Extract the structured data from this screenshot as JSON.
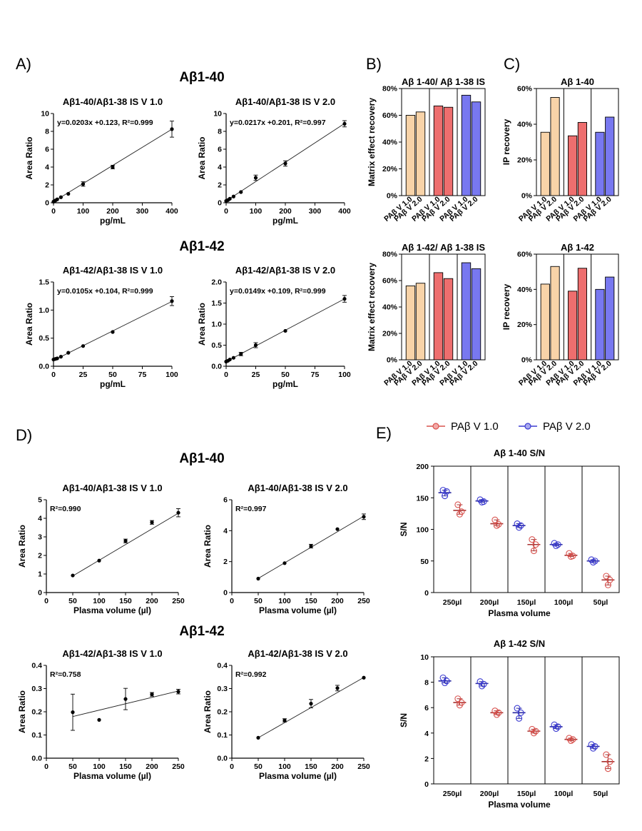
{
  "panels": {
    "A": {
      "letter": "A)",
      "groups": [
        "Aβ1-40",
        "Aβ1-42"
      ]
    },
    "B": {
      "letter": "B)"
    },
    "C": {
      "letter": "C)"
    },
    "D": {
      "letter": "D)",
      "groups": [
        "Aβ1-40",
        "Aβ1-42"
      ]
    },
    "E": {
      "letter": "E)",
      "legend": [
        {
          "label": "PAβ V 1.0",
          "color": "#d9534f"
        },
        {
          "label": "PAβ V 2.0",
          "color": "#3b3bd1"
        }
      ]
    }
  },
  "colors": {
    "v1_40": "#f8d3a8",
    "v2_40_b": "#f8d3a8",
    "red_bar": "#ee6e6e",
    "blue_bar": "#7878f0",
    "pt_red": "#d9534f",
    "pt_blue": "#3b3bd1"
  },
  "chart_data": [
    {
      "id": "A1",
      "type": "scatter",
      "title": "Aβ1-40/Aβ1-38 IS V 1.0",
      "xlabel": "pg/mL",
      "ylabel": "Area Ratio",
      "xlim": [
        0,
        400
      ],
      "ylim": [
        0,
        10
      ],
      "xticks": [
        0,
        100,
        200,
        300,
        400
      ],
      "yticks": [
        0,
        2,
        4,
        6,
        8,
        10
      ],
      "annotation": "y=0.0203x +0.123, R²=0.999",
      "points": [
        {
          "x": 0,
          "y": 0.12
        },
        {
          "x": 6.25,
          "y": 0.25
        },
        {
          "x": 12.5,
          "y": 0.38
        },
        {
          "x": 25,
          "y": 0.62
        },
        {
          "x": 50,
          "y": 1.0
        },
        {
          "x": 100,
          "y": 2.1,
          "err": 0.25
        },
        {
          "x": 200,
          "y": 4.0,
          "err": 0.2
        },
        {
          "x": 400,
          "y": 8.25,
          "err": 0.9
        }
      ],
      "fit": {
        "slope": 0.0203,
        "intercept": 0.123
      }
    },
    {
      "id": "A2",
      "type": "scatter",
      "title": "Aβ1-40/Aβ1-38 IS V 2.0",
      "xlabel": "pg/mL",
      "ylabel": "Area Ratio",
      "xlim": [
        0,
        400
      ],
      "ylim": [
        0,
        10
      ],
      "xticks": [
        0,
        100,
        200,
        300,
        400
      ],
      "yticks": [
        0,
        2,
        4,
        6,
        8,
        10
      ],
      "annotation": "y=0.0217x +0.201, R²=0.997",
      "points": [
        {
          "x": 0,
          "y": 0.2
        },
        {
          "x": 6.25,
          "y": 0.3
        },
        {
          "x": 12.5,
          "y": 0.45
        },
        {
          "x": 25,
          "y": 0.7
        },
        {
          "x": 50,
          "y": 1.2
        },
        {
          "x": 100,
          "y": 2.8,
          "err": 0.3
        },
        {
          "x": 200,
          "y": 4.4,
          "err": 0.3
        },
        {
          "x": 400,
          "y": 8.85,
          "err": 0.35
        }
      ],
      "fit": {
        "slope": 0.0217,
        "intercept": 0.201
      }
    },
    {
      "id": "A3",
      "type": "scatter",
      "title": "Aβ1-42/Aβ1-38 IS V 1.0",
      "xlabel": "pg/mL",
      "ylabel": "Area Ratio",
      "xlim": [
        0,
        100
      ],
      "ylim": [
        0,
        1.5
      ],
      "xticks": [
        0,
        25,
        50,
        75,
        100
      ],
      "yticks": [
        0.0,
        0.5,
        1.0,
        1.5
      ],
      "annotation": "y=0.0105x +0.104, R²=0.999",
      "points": [
        {
          "x": 0,
          "y": 0.12
        },
        {
          "x": 1.5625,
          "y": 0.13
        },
        {
          "x": 3.125,
          "y": 0.14
        },
        {
          "x": 6.25,
          "y": 0.17
        },
        {
          "x": 12.5,
          "y": 0.24
        },
        {
          "x": 25,
          "y": 0.36
        },
        {
          "x": 50,
          "y": 0.61
        },
        {
          "x": 100,
          "y": 1.16,
          "err": 0.08
        }
      ],
      "fit": {
        "slope": 0.0105,
        "intercept": 0.104
      }
    },
    {
      "id": "A4",
      "type": "scatter",
      "title": "Aβ1-42/Aβ1-38 IS V 2.0",
      "xlabel": "pg/mL",
      "ylabel": "Area Ratio",
      "xlim": [
        0,
        100
      ],
      "ylim": [
        0,
        2.0
      ],
      "xticks": [
        0,
        25,
        50,
        75,
        100
      ],
      "yticks": [
        0.0,
        0.5,
        1.0,
        1.5,
        2.0
      ],
      "annotation": "y=0.0149x +0.109, R²=0.999",
      "points": [
        {
          "x": 0,
          "y": 0.11
        },
        {
          "x": 1.5625,
          "y": 0.13
        },
        {
          "x": 3.125,
          "y": 0.16
        },
        {
          "x": 6.25,
          "y": 0.2
        },
        {
          "x": 12.5,
          "y": 0.29,
          "err": 0.04
        },
        {
          "x": 25,
          "y": 0.5,
          "err": 0.06
        },
        {
          "x": 50,
          "y": 0.84
        },
        {
          "x": 100,
          "y": 1.6,
          "err": 0.08
        }
      ],
      "fit": {
        "slope": 0.0149,
        "intercept": 0.109
      }
    },
    {
      "id": "B1",
      "type": "bar",
      "title": "Aβ 1-40/ Aβ 1-38 IS",
      "ylabel": "Matrix effect recovery",
      "ylim": [
        0,
        80
      ],
      "yticks": [
        "0%",
        "20%",
        "40%",
        "60%",
        "80%"
      ],
      "categories": [
        "PAβ V 1.0",
        "PAβ V 2.0",
        "PAβ V 1.0",
        "PAβ V 2.0",
        "PAβ V 1.0",
        "PAβ V 2.0"
      ],
      "values": [
        60,
        62.5,
        67,
        66,
        75,
        70
      ],
      "bar_colors": [
        "#f8d3a8",
        "#f8d3a8",
        "#ee6e6e",
        "#ee6e6e",
        "#7878f0",
        "#7878f0"
      ]
    },
    {
      "id": "B2",
      "type": "bar",
      "title": "Aβ 1-42/ Aβ 1-38 IS",
      "ylabel": "Matrix effect recovery",
      "ylim": [
        0,
        80
      ],
      "yticks": [
        "0%",
        "20%",
        "40%",
        "60%",
        "80%"
      ],
      "categories": [
        "PAβ V 1.0",
        "PAβ V 2.0",
        "PAβ V 1.0",
        "PAβ V 2.0",
        "PAβ V 1.0",
        "PAβ V 2.0"
      ],
      "values": [
        56,
        58,
        66,
        61.5,
        73.5,
        69
      ],
      "bar_colors": [
        "#f8d3a8",
        "#f8d3a8",
        "#ee6e6e",
        "#ee6e6e",
        "#7878f0",
        "#7878f0"
      ]
    },
    {
      "id": "C1",
      "type": "bar",
      "title": "Aβ 1-40",
      "ylabel": "IP recovery",
      "ylim": [
        0,
        60
      ],
      "yticks": [
        "0%",
        "20%",
        "40%",
        "60%"
      ],
      "categories": [
        "PAβ V 1.0",
        "PAβ V 2.0",
        "PAβ V 1.0",
        "PAβ V 2.0",
        "PAβ V 1.0",
        "PAβ V 2.0"
      ],
      "values": [
        35.5,
        55,
        33.5,
        41,
        35.5,
        44
      ],
      "bar_colors": [
        "#f8d3a8",
        "#f8d3a8",
        "#ee6e6e",
        "#ee6e6e",
        "#7878f0",
        "#7878f0"
      ]
    },
    {
      "id": "C2",
      "type": "bar",
      "title": "Aβ 1-42",
      "ylabel": "IP recovery",
      "ylim": [
        0,
        60
      ],
      "yticks": [
        "0%",
        "20%",
        "40%",
        "60%"
      ],
      "categories": [
        "PAβ V 1.0",
        "PAβ V 2.0",
        "PAβ V 1.0",
        "PAβ V 2.0",
        "PAβ V 1.0",
        "PAβ V 2.0"
      ],
      "values": [
        43,
        53,
        39,
        52,
        40,
        47
      ],
      "bar_colors": [
        "#f8d3a8",
        "#f8d3a8",
        "#ee6e6e",
        "#ee6e6e",
        "#7878f0",
        "#7878f0"
      ]
    },
    {
      "id": "D1",
      "type": "scatter",
      "title": "Aβ1-40/Aβ1-38 IS V 1.0",
      "xlabel": "Plasma volume (µl)",
      "ylabel": "Area Ratio",
      "xlim": [
        0,
        250
      ],
      "ylim": [
        0,
        5
      ],
      "xticks": [
        0,
        50,
        100,
        150,
        200,
        250
      ],
      "yticks": [
        0,
        1,
        2,
        3,
        4,
        5
      ],
      "annotation": "R²=0.990",
      "points": [
        {
          "x": 50,
          "y": 0.92
        },
        {
          "x": 100,
          "y": 1.72
        },
        {
          "x": 150,
          "y": 2.78,
          "err": 0.1
        },
        {
          "x": 200,
          "y": 3.78,
          "err": 0.1
        },
        {
          "x": 250,
          "y": 4.3,
          "err": 0.22
        }
      ],
      "fit": {
        "slope": 0.0169,
        "intercept": 0.05
      }
    },
    {
      "id": "D2",
      "type": "scatter",
      "title": "Aβ1-40/Aβ1-38 IS V 2.0",
      "xlabel": "Plasma volume (µl)",
      "ylabel": "Area Ratio",
      "xlim": [
        0,
        250
      ],
      "ylim": [
        0,
        6
      ],
      "xticks": [
        0,
        50,
        100,
        150,
        200,
        250
      ],
      "yticks": [
        0,
        2,
        4,
        6
      ],
      "annotation": "R²=0.997",
      "points": [
        {
          "x": 50,
          "y": 0.9
        },
        {
          "x": 100,
          "y": 1.9
        },
        {
          "x": 150,
          "y": 3.0,
          "err": 0.12
        },
        {
          "x": 200,
          "y": 4.1
        },
        {
          "x": 250,
          "y": 4.9,
          "err": 0.18
        }
      ],
      "fit": {
        "slope": 0.0201,
        "intercept": -0.09
      }
    },
    {
      "id": "D3",
      "type": "scatter",
      "title": "Aβ1-42/Aβ1-38 IS V 1.0",
      "xlabel": "Plasma volume (µl)",
      "ylabel": "Area Ratio",
      "xlim": [
        0,
        250
      ],
      "ylim": [
        0,
        0.4
      ],
      "xticks": [
        0,
        50,
        100,
        150,
        200,
        250
      ],
      "yticks": [
        0.0,
        0.1,
        0.2,
        0.3,
        0.4
      ],
      "annotation": "R²=0.758",
      "points": [
        {
          "x": 50,
          "y": 0.198,
          "err": 0.078
        },
        {
          "x": 100,
          "y": 0.165
        },
        {
          "x": 150,
          "y": 0.255,
          "err": 0.046
        },
        {
          "x": 200,
          "y": 0.275,
          "err": 0.008
        },
        {
          "x": 250,
          "y": 0.287,
          "err": 0.01
        }
      ],
      "fit": {
        "slope": 0.00055,
        "intercept": 0.152
      }
    },
    {
      "id": "D4",
      "type": "scatter",
      "title": "Aβ1-42/Aβ1-38 IS V 2.0",
      "xlabel": "Plasma volume (µl)",
      "ylabel": "Area Ratio",
      "xlim": [
        0,
        250
      ],
      "ylim": [
        0,
        0.4
      ],
      "xticks": [
        0,
        50,
        100,
        150,
        200,
        250
      ],
      "yticks": [
        0.0,
        0.1,
        0.2,
        0.3,
        0.4
      ],
      "annotation": "R²=0.992",
      "points": [
        {
          "x": 50,
          "y": 0.088
        },
        {
          "x": 100,
          "y": 0.163,
          "err": 0.007
        },
        {
          "x": 150,
          "y": 0.235,
          "err": 0.018
        },
        {
          "x": 200,
          "y": 0.302,
          "err": 0.012
        },
        {
          "x": 250,
          "y": 0.347
        }
      ],
      "fit": {
        "slope": 0.0013,
        "intercept": 0.023
      }
    },
    {
      "id": "E1",
      "type": "scatter",
      "title": "Aβ 1-40 S/N",
      "xlabel": "Plasma volume",
      "ylabel": "S/N",
      "ylim": [
        0,
        200
      ],
      "yticks": [
        0,
        50,
        100,
        150,
        200
      ],
      "categories": [
        "250µl",
        "200µl",
        "150µl",
        "100µl",
        "50µl"
      ],
      "series": [
        {
          "name": "PAβ V 2.0",
          "mean": [
            158,
            145,
            106,
            76,
            50
          ],
          "points": [
            [
              162,
              160,
              153
            ],
            [
              147,
              144,
              143
            ],
            [
              109,
              106,
              103
            ],
            [
              78,
              76,
              74
            ],
            [
              52,
              50,
              48
            ]
          ]
        },
        {
          "name": "PAβ V 1.0",
          "mean": [
            130,
            109,
            76,
            59,
            20
          ],
          "points": [
            [
              139,
              128,
              124
            ],
            [
              115,
              108,
              106
            ],
            [
              84,
              76,
              66
            ],
            [
              62,
              58,
              57
            ],
            [
              26,
              20,
              12
            ]
          ]
        }
      ]
    },
    {
      "id": "E2",
      "type": "scatter",
      "title": "Aβ 1-42 S/N",
      "xlabel": "Plasma volume",
      "ylabel": "S/N",
      "ylim": [
        0,
        10
      ],
      "yticks": [
        0,
        2,
        4,
        6,
        8,
        10
      ],
      "categories": [
        "250µl",
        "200µl",
        "150µl",
        "100µl",
        "50µl"
      ],
      "series": [
        {
          "name": "PAβ V 2.0",
          "mean": [
            8.1,
            7.9,
            5.6,
            4.5,
            2.95
          ],
          "points": [
            [
              8.35,
              8.1,
              7.95
            ],
            [
              8.05,
              7.85,
              7.7
            ],
            [
              5.95,
              5.6,
              5.15
            ],
            [
              4.65,
              4.5,
              4.35
            ],
            [
              3.1,
              2.95,
              2.8
            ]
          ]
        },
        {
          "name": "PAβ V 1.0",
          "mean": [
            6.4,
            5.6,
            4.15,
            3.5,
            1.75
          ],
          "points": [
            [
              6.7,
              6.4,
              6.2
            ],
            [
              5.75,
              5.6,
              5.45
            ],
            [
              4.3,
              4.15,
              4.0
            ],
            [
              3.6,
              3.5,
              3.4
            ],
            [
              2.3,
              1.75,
              1.2
            ]
          ]
        }
      ]
    }
  ]
}
